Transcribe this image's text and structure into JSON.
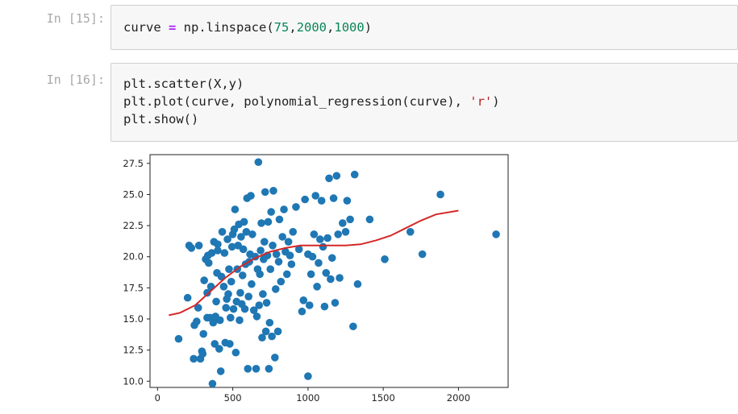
{
  "cells": [
    {
      "prompt": "In [15]:",
      "code_lines": [
        [
          {
            "t": "curve ",
            "c": ""
          },
          {
            "t": "=",
            "c": "op"
          },
          {
            "t": " np.linspace(",
            "c": ""
          },
          {
            "t": "75",
            "c": "num"
          },
          {
            "t": ",",
            "c": ""
          },
          {
            "t": "2000",
            "c": "num"
          },
          {
            "t": ",",
            "c": ""
          },
          {
            "t": "1000",
            "c": "num"
          },
          {
            "t": ")",
            "c": ""
          }
        ]
      ]
    },
    {
      "prompt": "In [16]:",
      "code_lines": [
        [
          {
            "t": "plt.scatter(X,y)",
            "c": ""
          }
        ],
        [
          {
            "t": "plt.plot(curve, polynomial_regression(curve), ",
            "c": ""
          },
          {
            "t": "'r'",
            "c": "str"
          },
          {
            "t": ")",
            "c": ""
          }
        ],
        [
          {
            "t": "plt.show()",
            "c": ""
          }
        ]
      ]
    }
  ],
  "chart_data": {
    "type": "scatter",
    "title": "",
    "xlabel": "",
    "ylabel": "",
    "xlim": [
      -50,
      2330
    ],
    "ylim": [
      9.5,
      28.2
    ],
    "xticks": [
      0,
      500,
      1000,
      1500,
      2000
    ],
    "xtick_labels": [
      "0",
      "500",
      "1000",
      "1500",
      "2000"
    ],
    "yticks": [
      10.0,
      12.5,
      15.0,
      17.5,
      20.0,
      22.5,
      25.0,
      27.5
    ],
    "ytick_labels": [
      "10.0",
      "12.5",
      "15.0",
      "17.5",
      "20.0",
      "22.5",
      "25.0",
      "27.5"
    ],
    "grid": false,
    "colors": {
      "scatter": "#1f77b4",
      "line": "#d62728"
    },
    "scatter_points": [
      [
        140,
        13.4
      ],
      [
        200,
        16.7
      ],
      [
        210,
        20.9
      ],
      [
        225,
        20.7
      ],
      [
        240,
        11.8
      ],
      [
        245,
        14.5
      ],
      [
        260,
        14.8
      ],
      [
        270,
        15.9
      ],
      [
        275,
        20.9
      ],
      [
        285,
        11.8
      ],
      [
        295,
        12.4
      ],
      [
        300,
        12.2
      ],
      [
        305,
        13.8
      ],
      [
        310,
        18.1
      ],
      [
        320,
        19.8
      ],
      [
        330,
        15.1
      ],
      [
        330,
        17.1
      ],
      [
        335,
        20.1
      ],
      [
        340,
        19.5
      ],
      [
        350,
        15.1
      ],
      [
        355,
        17.6
      ],
      [
        360,
        20.3
      ],
      [
        365,
        9.8
      ],
      [
        370,
        14.7
      ],
      [
        375,
        21.2
      ],
      [
        380,
        13.0
      ],
      [
        385,
        15.2
      ],
      [
        390,
        16.4
      ],
      [
        395,
        18.7
      ],
      [
        400,
        20.5
      ],
      [
        400,
        21.0
      ],
      [
        410,
        12.6
      ],
      [
        415,
        14.9
      ],
      [
        420,
        10.8
      ],
      [
        425,
        18.4
      ],
      [
        430,
        22.0
      ],
      [
        440,
        17.6
      ],
      [
        445,
        20.3
      ],
      [
        450,
        13.1
      ],
      [
        455,
        15.9
      ],
      [
        460,
        16.6
      ],
      [
        465,
        21.4
      ],
      [
        470,
        17.0
      ],
      [
        475,
        19.0
      ],
      [
        480,
        13.0
      ],
      [
        485,
        15.1
      ],
      [
        490,
        18.0
      ],
      [
        495,
        20.8
      ],
      [
        500,
        21.8
      ],
      [
        505,
        15.8
      ],
      [
        510,
        22.2
      ],
      [
        515,
        23.8
      ],
      [
        520,
        12.3
      ],
      [
        525,
        16.4
      ],
      [
        530,
        19.0
      ],
      [
        535,
        20.9
      ],
      [
        540,
        22.6
      ],
      [
        545,
        14.9
      ],
      [
        550,
        17.1
      ],
      [
        555,
        21.6
      ],
      [
        560,
        16.2
      ],
      [
        565,
        18.5
      ],
      [
        570,
        20.6
      ],
      [
        575,
        22.8
      ],
      [
        580,
        15.8
      ],
      [
        585,
        19.4
      ],
      [
        590,
        22.0
      ],
      [
        595,
        24.7
      ],
      [
        600,
        11.0
      ],
      [
        605,
        16.8
      ],
      [
        610,
        19.6
      ],
      [
        615,
        20.2
      ],
      [
        620,
        24.9
      ],
      [
        625,
        17.8
      ],
      [
        630,
        21.8
      ],
      [
        640,
        15.7
      ],
      [
        650,
        20.0
      ],
      [
        655,
        11.0
      ],
      [
        660,
        15.2
      ],
      [
        665,
        19.0
      ],
      [
        670,
        27.6
      ],
      [
        675,
        16.1
      ],
      [
        680,
        18.6
      ],
      [
        685,
        20.5
      ],
      [
        690,
        22.7
      ],
      [
        695,
        13.5
      ],
      [
        700,
        17.0
      ],
      [
        705,
        19.8
      ],
      [
        710,
        21.2
      ],
      [
        715,
        25.2
      ],
      [
        720,
        14.0
      ],
      [
        725,
        16.3
      ],
      [
        730,
        20.1
      ],
      [
        735,
        22.8
      ],
      [
        740,
        11.0
      ],
      [
        745,
        14.7
      ],
      [
        750,
        19.0
      ],
      [
        755,
        23.6
      ],
      [
        760,
        13.6
      ],
      [
        765,
        20.9
      ],
      [
        770,
        25.3
      ],
      [
        780,
        11.9
      ],
      [
        785,
        17.4
      ],
      [
        790,
        20.2
      ],
      [
        800,
        14.0
      ],
      [
        805,
        19.6
      ],
      [
        810,
        23.0
      ],
      [
        820,
        18.0
      ],
      [
        830,
        21.6
      ],
      [
        840,
        23.8
      ],
      [
        850,
        20.4
      ],
      [
        860,
        18.6
      ],
      [
        870,
        21.2
      ],
      [
        880,
        20.1
      ],
      [
        890,
        19.4
      ],
      [
        900,
        22.0
      ],
      [
        920,
        24.0
      ],
      [
        940,
        20.6
      ],
      [
        960,
        15.6
      ],
      [
        970,
        16.5
      ],
      [
        980,
        24.6
      ],
      [
        1000,
        10.4
      ],
      [
        1000,
        20.2
      ],
      [
        1010,
        16.1
      ],
      [
        1020,
        18.6
      ],
      [
        1030,
        20.0
      ],
      [
        1040,
        21.8
      ],
      [
        1050,
        24.9
      ],
      [
        1060,
        17.6
      ],
      [
        1070,
        19.5
      ],
      [
        1080,
        21.4
      ],
      [
        1090,
        24.5
      ],
      [
        1100,
        20.8
      ],
      [
        1110,
        16.0
      ],
      [
        1120,
        18.7
      ],
      [
        1130,
        21.5
      ],
      [
        1140,
        26.3
      ],
      [
        1150,
        18.2
      ],
      [
        1160,
        19.9
      ],
      [
        1170,
        24.7
      ],
      [
        1180,
        16.3
      ],
      [
        1190,
        26.5
      ],
      [
        1200,
        21.8
      ],
      [
        1210,
        18.3
      ],
      [
        1230,
        22.7
      ],
      [
        1250,
        22.0
      ],
      [
        1260,
        24.5
      ],
      [
        1280,
        23.0
      ],
      [
        1300,
        14.4
      ],
      [
        1310,
        26.6
      ],
      [
        1330,
        17.8
      ],
      [
        1410,
        23.0
      ],
      [
        1510,
        19.8
      ],
      [
        1680,
        22.0
      ],
      [
        1760,
        20.2
      ],
      [
        1880,
        25.0
      ],
      [
        2250,
        21.8
      ]
    ],
    "line_points": [
      [
        75,
        15.3
      ],
      [
        150,
        15.5
      ],
      [
        250,
        16.1
      ],
      [
        350,
        17.2
      ],
      [
        450,
        18.3
      ],
      [
        550,
        19.2
      ],
      [
        650,
        19.9
      ],
      [
        750,
        20.4
      ],
      [
        850,
        20.7
      ],
      [
        950,
        20.9
      ],
      [
        1050,
        20.9
      ],
      [
        1150,
        20.9
      ],
      [
        1250,
        20.9
      ],
      [
        1350,
        21.0
      ],
      [
        1450,
        21.3
      ],
      [
        1550,
        21.7
      ],
      [
        1650,
        22.3
      ],
      [
        1750,
        22.9
      ],
      [
        1850,
        23.4
      ],
      [
        2000,
        23.7
      ]
    ]
  }
}
